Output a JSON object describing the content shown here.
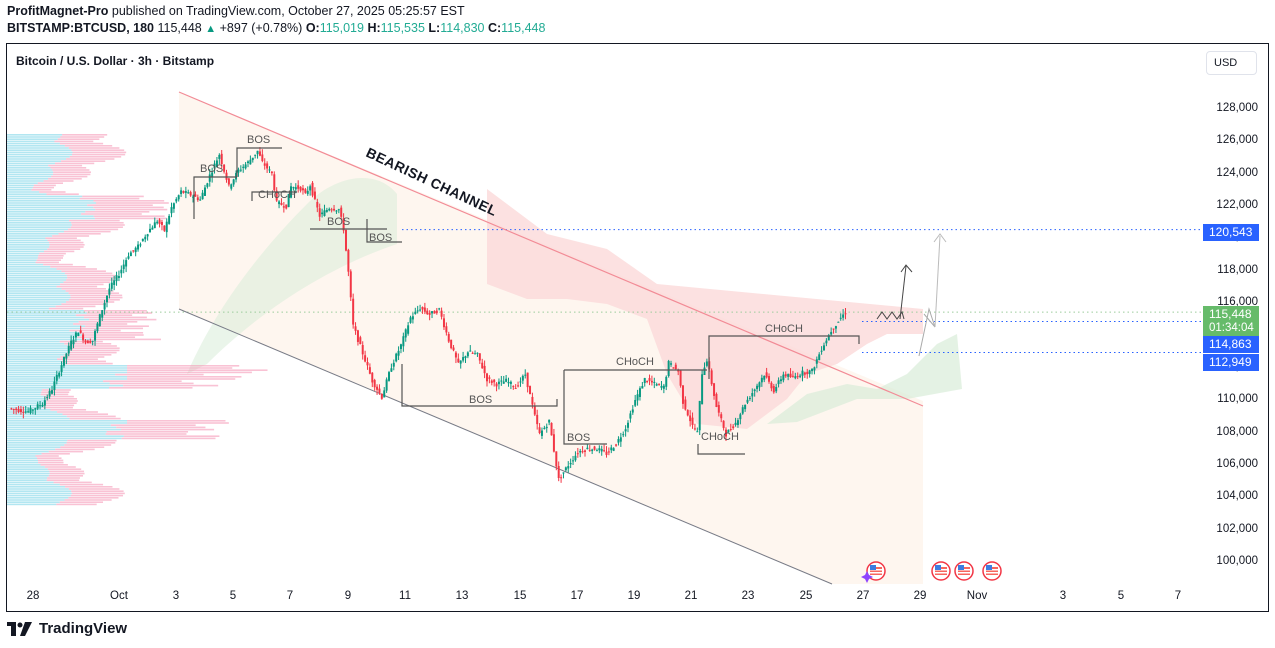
{
  "header": {
    "author": "ProfitMagnet-Pro",
    "published_text": "published on TradingView.com, October 27, 2025 05:25:57 EST",
    "symbol": "BITSTAMP:BTCUSD, 180",
    "last": "115,448",
    "change": "+897 (+0.78%)",
    "o_label": "O:",
    "o": "115,019",
    "h_label": "H:",
    "h": "115,535",
    "l_label": "L:",
    "l": "114,830",
    "c_label": "C:",
    "c": "115,448"
  },
  "chart": {
    "title": "Bitcoin / U.S. Dollar · 3h · Bitstamp",
    "currency_button": "USD",
    "brand": "TradingView"
  },
  "chart_data": {
    "type": "candlestick",
    "title": "Bitcoin / U.S. Dollar · 3h · Bitstamp",
    "xlabel": "",
    "ylabel": "USD",
    "ylim": [
      98600,
      131000
    ],
    "y_ticks": [
      "128,000",
      "126,000",
      "124,000",
      "122,000",
      "120,000",
      "118,000",
      "116,000",
      "114,000",
      "112,000",
      "110,000",
      "108,000",
      "106,000",
      "104,000",
      "102,000",
      "100,000"
    ],
    "x_ticks": [
      "28",
      "Oct",
      "3",
      "5",
      "7",
      "9",
      "11",
      "13",
      "15",
      "17",
      "19",
      "21",
      "23",
      "25",
      "27",
      "29",
      "Nov",
      "3",
      "5",
      "7"
    ],
    "price_path": [
      [
        0,
        109500
      ],
      [
        8,
        109300
      ],
      [
        14,
        109800
      ],
      [
        18,
        110700
      ],
      [
        22,
        112200
      ],
      [
        26,
        113600
      ],
      [
        29,
        114300
      ],
      [
        32,
        113600
      ],
      [
        35,
        113700
      ],
      [
        38,
        115200
      ],
      [
        42,
        116900
      ],
      [
        46,
        117800
      ],
      [
        50,
        119000
      ],
      [
        54,
        119500
      ],
      [
        58,
        120400
      ],
      [
        62,
        121100
      ],
      [
        65,
        120500
      ],
      [
        68,
        121900
      ],
      [
        72,
        122900
      ],
      [
        76,
        122700
      ],
      [
        80,
        122400
      ],
      [
        84,
        123900
      ],
      [
        88,
        125200
      ],
      [
        90,
        124200
      ],
      [
        92,
        123200
      ],
      [
        96,
        124200
      ],
      [
        100,
        124700
      ],
      [
        104,
        125400
      ],
      [
        106,
        124700
      ],
      [
        110,
        124000
      ],
      [
        112,
        122200
      ],
      [
        116,
        122000
      ],
      [
        118,
        123200
      ],
      [
        122,
        123100
      ],
      [
        124,
        122700
      ],
      [
        126,
        123300
      ],
      [
        128,
        122300
      ],
      [
        130,
        121400
      ],
      [
        134,
        121900
      ],
      [
        138,
        121800
      ],
      [
        140,
        120600
      ],
      [
        142,
        117900
      ],
      [
        144,
        114600
      ],
      [
        148,
        112900
      ],
      [
        152,
        111200
      ],
      [
        156,
        110200
      ],
      [
        160,
        112100
      ],
      [
        164,
        113400
      ],
      [
        168,
        115100
      ],
      [
        172,
        115700
      ],
      [
        176,
        115300
      ],
      [
        180,
        115600
      ],
      [
        184,
        113700
      ],
      [
        188,
        112200
      ],
      [
        192,
        113000
      ],
      [
        196,
        112800
      ],
      [
        200,
        111300
      ],
      [
        204,
        111000
      ],
      [
        208,
        111200
      ],
      [
        212,
        110800
      ],
      [
        216,
        111600
      ],
      [
        220,
        109000
      ],
      [
        222,
        107900
      ],
      [
        226,
        108700
      ],
      [
        230,
        105100
      ],
      [
        234,
        106000
      ],
      [
        238,
        106800
      ],
      [
        242,
        107000
      ],
      [
        246,
        107000
      ],
      [
        250,
        106700
      ],
      [
        254,
        107300
      ],
      [
        258,
        108300
      ],
      [
        262,
        110000
      ],
      [
        266,
        111300
      ],
      [
        270,
        111000
      ],
      [
        274,
        110800
      ],
      [
        276,
        112300
      ],
      [
        280,
        111800
      ],
      [
        282,
        109900
      ],
      [
        286,
        108400
      ],
      [
        288,
        108000
      ],
      [
        290,
        111700
      ],
      [
        292,
        112500
      ],
      [
        296,
        109600
      ],
      [
        300,
        107900
      ],
      [
        304,
        108600
      ],
      [
        308,
        109800
      ],
      [
        312,
        110700
      ],
      [
        316,
        111600
      ],
      [
        320,
        110600
      ],
      [
        324,
        111600
      ],
      [
        328,
        111400
      ],
      [
        332,
        111700
      ],
      [
        336,
        111800
      ],
      [
        340,
        113200
      ],
      [
        344,
        114300
      ],
      [
        348,
        115100
      ],
      [
        350,
        115448
      ]
    ],
    "annotations": [
      {
        "type": "label",
        "text": "BEARISH CHANNEL"
      },
      {
        "type": "label",
        "text": "BOS",
        "count": 6
      },
      {
        "type": "label",
        "text": "CHoCH",
        "count": 4
      },
      {
        "type": "hline",
        "price": 120543,
        "color": "#2962ff"
      },
      {
        "type": "hline",
        "price": 114863,
        "color": "#2962ff"
      },
      {
        "type": "hline",
        "price": 112949,
        "color": "#2962ff"
      }
    ],
    "price_labels": [
      {
        "value": "120,543",
        "color": "#2962ff"
      },
      {
        "value": "115,448",
        "sub": "01:34:04",
        "color": "#66bb6a"
      },
      {
        "value": "114,863",
        "color": "#2962ff"
      },
      {
        "value": "112,949",
        "color": "#2962ff"
      }
    ]
  },
  "labels": {
    "channel": "BEARISH CHANNEL",
    "bos": "BOS",
    "choch": "CHoCH"
  },
  "colors": {
    "up": "#089981",
    "down": "#f23645",
    "channel_upper": "#f28b96",
    "channel_lower": "#787b86",
    "marker": "#2962ff"
  },
  "events": [
    "us-flag-event",
    "us-flag-event",
    "us-flag-event",
    "us-flag-event"
  ]
}
